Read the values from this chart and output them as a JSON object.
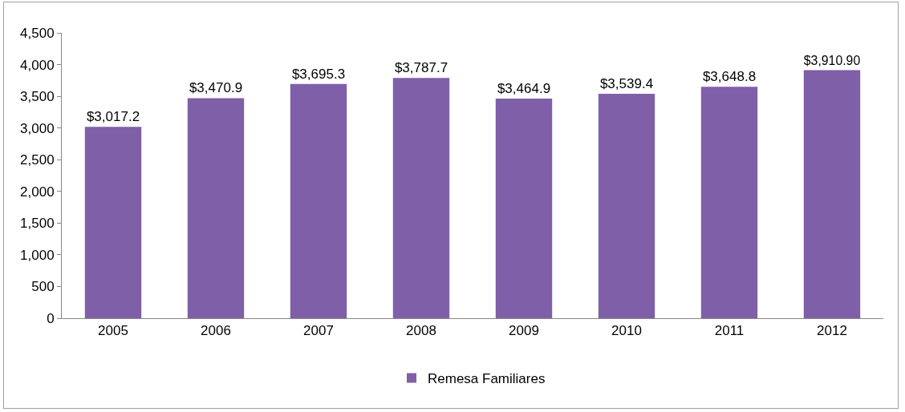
{
  "chart_data": {
    "type": "bar",
    "categories": [
      "2005",
      "2006",
      "2007",
      "2008",
      "2009",
      "2010",
      "2011",
      "2012"
    ],
    "series": [
      {
        "name": "Remesa Familiares",
        "color": "#7f5fa8",
        "values": [
          3017.2,
          3470.9,
          3695.3,
          3787.7,
          3464.9,
          3539.4,
          3648.8,
          3910.9
        ],
        "value_labels": [
          "$3,017.2",
          "$3,470.9",
          "$3,695.3",
          "$3,787.7",
          "$3,464.9",
          "$3,539.4",
          "$3,648.8",
          "$3,910.90"
        ]
      }
    ],
    "ylim": [
      0,
      4500
    ],
    "yticks": [
      0,
      500,
      {
        "value": 1000,
        "label": "1,000"
      },
      {
        "value": 1500,
        "label": "1,500"
      },
      {
        "value": 2000,
        "label": "2,000"
      },
      {
        "value": 2500,
        "label": "2,500"
      },
      {
        "value": 3000,
        "label": "3,000"
      },
      {
        "value": 3500,
        "label": "3,500"
      },
      {
        "value": 4000,
        "label": "4,000"
      },
      {
        "value": 4500,
        "label": "4,500"
      }
    ],
    "grid": false,
    "legend": "bottom"
  }
}
